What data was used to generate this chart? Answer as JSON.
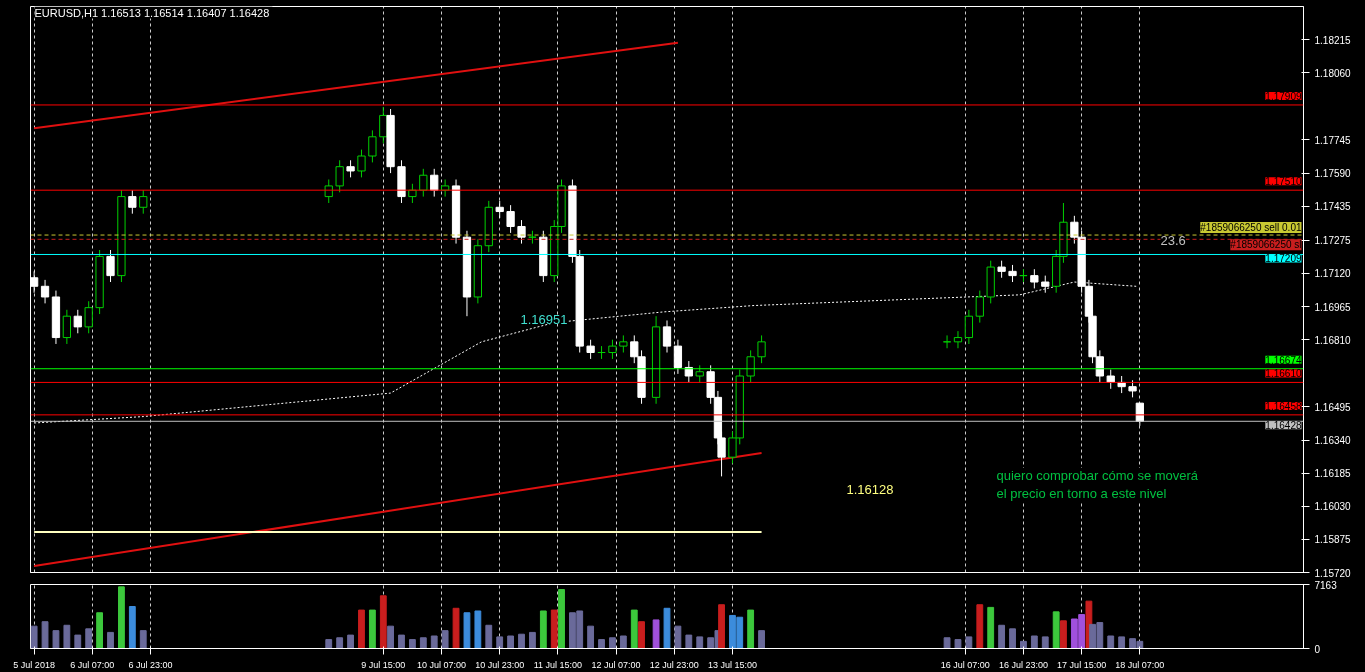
{
  "chart_data": [
    {
      "type": "candlestick",
      "title": "EURUSD,H1  1.16513 1.16514 1.16407 1.16428",
      "x": [
        "2018-07-05T15:00",
        "2018-07-05T18:00",
        "2018-07-05T21:00",
        "2018-07-06T00:00",
        "2018-07-06T03:00",
        "2018-07-06T06:00",
        "2018-07-06T09:00",
        "2018-07-06T12:00",
        "2018-07-06T15:00",
        "2018-07-06T18:00",
        "2018-07-06T21:00",
        "2018-07-09T00:00",
        "2018-07-09T03:00",
        "2018-07-09T06:00",
        "2018-07-09T09:00",
        "2018-07-09T12:00",
        "2018-07-09T15:00",
        "2018-07-09T17:00",
        "2018-07-09T20:00",
        "2018-07-09T23:00",
        "2018-07-10T02:00",
        "2018-07-10T05:00",
        "2018-07-10T08:00",
        "2018-07-10T11:00",
        "2018-07-10T14:00",
        "2018-07-10T17:00",
        "2018-07-10T20:00",
        "2018-07-10T23:00",
        "2018-07-11T02:00",
        "2018-07-11T05:00",
        "2018-07-11T08:00",
        "2018-07-11T11:00",
        "2018-07-11T14:00",
        "2018-07-11T16:00",
        "2018-07-11T19:00",
        "2018-07-11T21:00",
        "2018-07-12T00:00",
        "2018-07-12T03:00",
        "2018-07-12T06:00",
        "2018-07-12T09:00",
        "2018-07-12T12:00",
        "2018-07-12T14:00",
        "2018-07-12T18:00",
        "2018-07-12T21:00",
        "2018-07-13T00:00",
        "2018-07-13T03:00",
        "2018-07-13T06:00",
        "2018-07-13T09:00",
        "2018-07-13T11:00",
        "2018-07-13T12:00",
        "2018-07-13T15:00",
        "2018-07-13T17:00",
        "2018-07-13T20:00",
        "2018-07-13T23:00",
        "2018-07-16T02:00",
        "2018-07-16T05:00",
        "2018-07-16T08:00",
        "2018-07-16T11:00",
        "2018-07-16T14:00",
        "2018-07-16T17:00",
        "2018-07-16T20:00",
        "2018-07-16T23:00",
        "2018-07-17T02:00",
        "2018-07-17T05:00",
        "2018-07-17T08:00",
        "2018-07-17T10:00",
        "2018-07-17T13:00",
        "2018-07-17T15:00",
        "2018-07-17T17:00",
        "2018-07-17T18:00",
        "2018-07-17T20:00",
        "2018-07-17T23:00",
        "2018-07-18T02:00",
        "2018-07-18T05:00",
        "2018-07-18T07:00"
      ],
      "ohlc": [
        [
          1.171,
          1.1713,
          1.1703,
          1.1706
        ],
        [
          1.1706,
          1.1709,
          1.1698,
          1.1701
        ],
        [
          1.1701,
          1.1704,
          1.1679,
          1.1682
        ],
        [
          1.1682,
          1.1695,
          1.1679,
          1.1692
        ],
        [
          1.1692,
          1.1695,
          1.1684,
          1.1687
        ],
        [
          1.1687,
          1.1699,
          1.1684,
          1.1696
        ],
        [
          1.1696,
          1.1723,
          1.1693,
          1.172
        ],
        [
          1.172,
          1.1723,
          1.1708,
          1.1711
        ],
        [
          1.1711,
          1.1751,
          1.1708,
          1.1748
        ],
        [
          1.1748,
          1.1751,
          1.174,
          1.1743
        ],
        [
          1.1743,
          1.1751,
          1.174,
          1.1748
        ],
        [
          1.1748,
          1.1756,
          1.1745,
          1.1753
        ],
        [
          1.1753,
          1.1765,
          1.175,
          1.1762
        ],
        [
          1.1762,
          1.1765,
          1.1757,
          1.176
        ],
        [
          1.176,
          1.177,
          1.1757,
          1.1767
        ],
        [
          1.1767,
          1.1779,
          1.1764,
          1.1776
        ],
        [
          1.1776,
          1.179,
          1.1773,
          1.1786
        ],
        [
          1.1786,
          1.1789,
          1.1759,
          1.1762
        ],
        [
          1.1762,
          1.1765,
          1.1745,
          1.1748
        ],
        [
          1.1748,
          1.1754,
          1.1745,
          1.1751
        ],
        [
          1.1751,
          1.1761,
          1.1748,
          1.1758
        ],
        [
          1.1758,
          1.1761,
          1.1748,
          1.1751
        ],
        [
          1.1751,
          1.1756,
          1.1748,
          1.1753
        ],
        [
          1.1753,
          1.1756,
          1.1726,
          1.1729
        ],
        [
          1.1729,
          1.1732,
          1.1692,
          1.1701
        ],
        [
          1.1701,
          1.1728,
          1.1698,
          1.1725
        ],
        [
          1.1725,
          1.1746,
          1.1722,
          1.1743
        ],
        [
          1.1743,
          1.1746,
          1.1738,
          1.1741
        ],
        [
          1.1741,
          1.1744,
          1.1731,
          1.1734
        ],
        [
          1.1734,
          1.1737,
          1.1726,
          1.1729
        ],
        [
          1.1729,
          1.1732,
          1.1726,
          1.1729
        ],
        [
          1.1729,
          1.1732,
          1.1708,
          1.1711
        ],
        [
          1.1711,
          1.1737,
          1.1708,
          1.1734
        ],
        [
          1.1734,
          1.1756,
          1.1731,
          1.1753
        ],
        [
          1.1753,
          1.1756,
          1.1717,
          1.172
        ],
        [
          1.172,
          1.1723,
          1.1675,
          1.1678
        ],
        [
          1.1678,
          1.1681,
          1.1672,
          1.1675
        ],
        [
          1.1675,
          1.1678,
          1.1672,
          1.1675
        ],
        [
          1.1675,
          1.1681,
          1.1672,
          1.1678
        ],
        [
          1.1678,
          1.1683,
          1.1675,
          1.168
        ],
        [
          1.168,
          1.1683,
          1.167,
          1.1673
        ],
        [
          1.1673,
          1.1676,
          1.1651,
          1.1654
        ],
        [
          1.1654,
          1.1692,
          1.1651,
          1.1687
        ],
        [
          1.1687,
          1.169,
          1.1675,
          1.1678
        ],
        [
          1.1678,
          1.1681,
          1.1665,
          1.1668
        ],
        [
          1.1668,
          1.1671,
          1.1661,
          1.1664
        ],
        [
          1.1664,
          1.1669,
          1.1661,
          1.1666
        ],
        [
          1.1666,
          1.1669,
          1.1651,
          1.1654
        ],
        [
          1.1654,
          1.1657,
          1.1632,
          1.1635
        ],
        [
          1.1635,
          1.1638,
          1.1617,
          1.1626
        ],
        [
          1.1626,
          1.1638,
          1.1623,
          1.1635
        ],
        [
          1.1635,
          1.1667,
          1.1632,
          1.1664
        ],
        [
          1.1664,
          1.1676,
          1.1661,
          1.1673
        ],
        [
          1.1673,
          1.1683,
          1.167,
          1.168
        ],
        [
          1.168,
          1.1683,
          1.1677,
          1.168
        ],
        [
          1.168,
          1.1685,
          1.1677,
          1.1682
        ],
        [
          1.1682,
          1.1695,
          1.1679,
          1.1692
        ],
        [
          1.1692,
          1.1704,
          1.1689,
          1.1701
        ],
        [
          1.1701,
          1.1718,
          1.1698,
          1.1715
        ],
        [
          1.1715,
          1.1718,
          1.171,
          1.1713
        ],
        [
          1.1713,
          1.1716,
          1.1708,
          1.1711
        ],
        [
          1.1711,
          1.1714,
          1.1708,
          1.1711
        ],
        [
          1.1711,
          1.1714,
          1.1705,
          1.1708
        ],
        [
          1.1708,
          1.1711,
          1.1703,
          1.1706
        ],
        [
          1.1706,
          1.1723,
          1.1703,
          1.172
        ],
        [
          1.172,
          1.1745,
          1.1717,
          1.1736
        ],
        [
          1.1736,
          1.1739,
          1.1726,
          1.1729
        ],
        [
          1.1729,
          1.1732,
          1.1703,
          1.1706
        ],
        [
          1.1706,
          1.1709,
          1.1689,
          1.1692
        ],
        [
          1.1692,
          1.1695,
          1.167,
          1.1673
        ],
        [
          1.1673,
          1.1676,
          1.1661,
          1.1664
        ],
        [
          1.1664,
          1.1667,
          1.1658,
          1.1661
        ],
        [
          1.1661,
          1.1664,
          1.1656,
          1.1659
        ],
        [
          1.1659,
          1.1662,
          1.1654,
          1.1657
        ],
        [
          1.16513,
          1.16514,
          1.16407,
          1.16428
        ]
      ],
      "series": [
        {
          "type": "line",
          "color": "#e01010",
          "x": [
            "2018-07-05T15:00",
            "2018-07-13T00:00"
          ],
          "values": [
            1.178,
            1.182
          ]
        },
        {
          "type": "line",
          "color": "#e01010",
          "x": [
            "2018-07-05T15:00",
            "2018-07-13T23:00"
          ],
          "values": [
            1.1575,
            1.1628
          ]
        },
        {
          "type": "line",
          "color": "#ffffc0",
          "x": [
            "2018-07-05T15:00",
            "2018-07-13T23:00"
          ],
          "values": [
            1.1591,
            1.1591
          ]
        },
        {
          "type": "line",
          "color": "#ffffff",
          "line_style": "dotted",
          "x": [
            "2018-07-05T15:00",
            "2018-07-06T21:00",
            "2018-07-09T17:00",
            "2018-07-10T18:00",
            "2018-07-11T14:00",
            "2018-07-12T20:00",
            "2018-07-13T21:00",
            "2018-07-16T22:00",
            "2018-07-17T13:00",
            "2018-07-18T06:00"
          ],
          "values": [
            1.1642,
            1.1645,
            1.1656,
            1.168,
            1.1689,
            1.1694,
            1.1697,
            1.1702,
            1.1708,
            1.1706
          ]
        }
      ],
      "ref_lines": [
        {
          "axis": "y",
          "value": 1.17909,
          "label": "1.17909",
          "color": "#ff0000"
        },
        {
          "axis": "y",
          "value": 1.1751,
          "label": "1.17510",
          "color": "#ff0000"
        },
        {
          "axis": "y",
          "value": 1.173,
          "label": "#1859066250 sell 0.01",
          "color": "#c8c832",
          "line_style": "dashed"
        },
        {
          "axis": "y",
          "value": 1.1728,
          "label": "#1859066250 sl",
          "color": "#c81e1e",
          "line_style": "dashed"
        },
        {
          "axis": "y",
          "value": 1.17209,
          "label": "1.17209",
          "color": "#00ffff"
        },
        {
          "axis": "y",
          "value": 1.16674,
          "label": "1.16674",
          "color": "#00ff00"
        },
        {
          "axis": "y",
          "value": 1.1661,
          "label": "1.16610",
          "color": "#ff0000"
        },
        {
          "axis": "y",
          "value": 1.16458,
          "label": "1.16458",
          "color": "#ff0000"
        },
        {
          "axis": "y",
          "value": 1.16428,
          "label": "1.16428",
          "color": "#c0c0c0"
        }
      ],
      "annotations": [
        "23.6",
        "1.16951",
        "1.16128",
        "quiero comprobar cómo se moverá\nel precio en torno a este nivel"
      ],
      "xlim": [
        "2018-07-05T14:00",
        "2018-07-20T04:00"
      ],
      "xticks": [
        {
          "value": "2018-07-05T15:00",
          "label": null
        },
        {
          "value": "2018-07-06T07:00",
          "label": null
        },
        {
          "value": "2018-07-06T23:00",
          "label": null
        },
        {
          "value": "2018-07-09T15:00",
          "label": null
        },
        {
          "value": "2018-07-10T07:00",
          "label": null
        },
        {
          "value": "2018-07-10T23:00",
          "label": null
        },
        {
          "value": "2018-07-11T15:00",
          "label": null
        },
        {
          "value": "2018-07-12T07:00",
          "label": null
        },
        {
          "value": "2018-07-12T23:00",
          "label": null
        },
        {
          "value": "2018-07-13T15:00",
          "label": null
        },
        {
          "value": "2018-07-16T07:00",
          "label": null
        },
        {
          "value": "2018-07-16T23:00",
          "label": null
        },
        {
          "value": "2018-07-17T15:00",
          "label": null
        },
        {
          "value": "2018-07-18T07:00",
          "label": null
        }
      ],
      "ylim": [
        1.1572,
        1.1837
      ],
      "yticks": [
        {
          "value": 1.18215,
          "label": "1.18215"
        },
        {
          "value": 1.1806,
          "label": "1.18060"
        },
        {
          "value": 1.17745,
          "label": "1.17745"
        },
        {
          "value": 1.1759,
          "label": "1.17590"
        },
        {
          "value": 1.17435,
          "label": "1.17435"
        },
        {
          "value": 1.17275,
          "label": "1.17275"
        },
        {
          "value": 1.1712,
          "label": "1.17120"
        },
        {
          "value": 1.16965,
          "label": "1.16965"
        },
        {
          "value": 1.1681,
          "label": "1.16810"
        },
        {
          "value": 1.16495,
          "label": "1.16495"
        },
        {
          "value": 1.1634,
          "label": "1.16340"
        },
        {
          "value": 1.16185,
          "label": "1.16185"
        },
        {
          "value": 1.1603,
          "label": "1.16030"
        },
        {
          "value": 1.15875,
          "label": "1.15875"
        },
        {
          "value": 1.1572,
          "label": "1.15720"
        }
      ],
      "grid": "x",
      "tick_labels": "y"
    },
    {
      "type": "bar",
      "x": [
        "2018-07-05T15:00",
        "2018-07-05T18:00",
        "2018-07-05T21:00",
        "2018-07-06T00:00",
        "2018-07-06T03:00",
        "2018-07-06T06:00",
        "2018-07-06T09:00",
        "2018-07-06T12:00",
        "2018-07-06T15:00",
        "2018-07-06T18:00",
        "2018-07-06T21:00",
        "2018-07-09T00:00",
        "2018-07-09T03:00",
        "2018-07-09T06:00",
        "2018-07-09T09:00",
        "2018-07-09T12:00",
        "2018-07-09T15:00",
        "2018-07-09T17:00",
        "2018-07-09T20:00",
        "2018-07-09T23:00",
        "2018-07-10T02:00",
        "2018-07-10T05:00",
        "2018-07-10T08:00",
        "2018-07-10T11:00",
        "2018-07-10T14:00",
        "2018-07-10T17:00",
        "2018-07-10T20:00",
        "2018-07-10T23:00",
        "2018-07-11T02:00",
        "2018-07-11T05:00",
        "2018-07-11T08:00",
        "2018-07-11T11:00",
        "2018-07-11T14:00",
        "2018-07-11T16:00",
        "2018-07-11T19:00",
        "2018-07-11T21:00",
        "2018-07-12T00:00",
        "2018-07-12T03:00",
        "2018-07-12T06:00",
        "2018-07-12T09:00",
        "2018-07-12T12:00",
        "2018-07-12T14:00",
        "2018-07-12T18:00",
        "2018-07-12T21:00",
        "2018-07-13T00:00",
        "2018-07-13T03:00",
        "2018-07-13T06:00",
        "2018-07-13T09:00",
        "2018-07-13T11:00",
        "2018-07-13T12:00",
        "2018-07-13T15:00",
        "2018-07-13T17:00",
        "2018-07-13T20:00",
        "2018-07-13T23:00",
        "2018-07-16T02:00",
        "2018-07-16T05:00",
        "2018-07-16T08:00",
        "2018-07-16T11:00",
        "2018-07-16T14:00",
        "2018-07-16T17:00",
        "2018-07-16T20:00",
        "2018-07-16T23:00",
        "2018-07-17T02:00",
        "2018-07-17T05:00",
        "2018-07-17T08:00",
        "2018-07-17T10:00",
        "2018-07-17T13:00",
        "2018-07-17T15:00",
        "2018-07-17T17:00",
        "2018-07-17T18:00",
        "2018-07-17T20:00",
        "2018-07-17T23:00",
        "2018-07-18T02:00",
        "2018-07-18T05:00",
        "2018-07-18T07:00"
      ],
      "values": [
        2500,
        3000,
        2000,
        2600,
        1500,
        2200,
        4000,
        1800,
        6900,
        4700,
        2000,
        1000,
        1200,
        1500,
        4300,
        4300,
        5900,
        2500,
        1500,
        1000,
        1200,
        1400,
        2000,
        4500,
        4000,
        4200,
        2600,
        1300,
        1400,
        1600,
        1800,
        4200,
        4300,
        6600,
        4000,
        4200,
        2500,
        1000,
        1200,
        1400,
        4300,
        3000,
        3200,
        4500,
        2500,
        1500,
        1300,
        1200,
        2000,
        4900,
        3700,
        3500,
        4300,
        2000,
        1200,
        1000,
        1300,
        4900,
        4600,
        2600,
        2200,
        800,
        1400,
        1300,
        4100,
        3100,
        3300,
        3800,
        5300,
        2700,
        2900,
        1400,
        1300,
        1100,
        800
      ],
      "colors": [
        "#6a6a9a",
        "#6a6a9a",
        "#6a6a9a",
        "#6a6a9a",
        "#6a6a9a",
        "#6a6a9a",
        "#3cc83c",
        "#6a6a9a",
        "#3cc83c",
        "#3c8cdc",
        "#6a6a9a",
        "#6a6a9a",
        "#6a6a9a",
        "#6a6a9a",
        "#c81e1e",
        "#3cc83c",
        "#c81e1e",
        "#6a6a9a",
        "#6a6a9a",
        "#6a6a9a",
        "#6a6a9a",
        "#6a6a9a",
        "#6a6a9a",
        "#c81e1e",
        "#3c8cdc",
        "#3c8cdc",
        "#6a6a9a",
        "#6a6a9a",
        "#6a6a9a",
        "#6a6a9a",
        "#6a6a9a",
        "#3cc83c",
        "#c81e1e",
        "#3cc83c",
        "#6a6a9a",
        "#6a6a9a",
        "#6a6a9a",
        "#6a6a9a",
        "#6a6a9a",
        "#6a6a9a",
        "#3cc83c",
        "#c81e1e",
        "#a050dc",
        "#3c8cdc",
        "#6a6a9a",
        "#6a6a9a",
        "#6a6a9a",
        "#6a6a9a",
        "#6a6a9a",
        "#c81e1e",
        "#3c8cdc",
        "#3c8cdc",
        "#3cc83c",
        "#6a6a9a",
        "#6a6a9a",
        "#6a6a9a",
        "#6a6a9a",
        "#c81e1e",
        "#3cc83c",
        "#6a6a9a",
        "#6a6a9a",
        "#6a6a9a",
        "#6a6a9a",
        "#6a6a9a",
        "#3cc83c",
        "#c81e1e",
        "#a050dc",
        "#a050dc",
        "#c81e1e",
        "#6a6a9a",
        "#6a6a9a",
        "#6a6a9a",
        "#6a6a9a",
        "#6a6a9a",
        "#6a6a9a"
      ],
      "xlim": [
        "2018-07-05T14:00",
        "2018-07-20T04:00"
      ],
      "xticks": [
        {
          "value": "2018-07-05T15:00",
          "label": "5 Jul 2018"
        },
        {
          "value": "2018-07-06T07:00",
          "label": "6 Jul 07:00"
        },
        {
          "value": "2018-07-06T23:00",
          "label": "6 Jul 23:00"
        },
        {
          "value": "2018-07-09T15:00",
          "label": "9 Jul 15:00"
        },
        {
          "value": "2018-07-10T07:00",
          "label": "10 Jul 07:00"
        },
        {
          "value": "2018-07-10T23:00",
          "label": "10 Jul 23:00"
        },
        {
          "value": "2018-07-11T15:00",
          "label": "11 Jul 15:00"
        },
        {
          "value": "2018-07-12T07:00",
          "label": "12 Jul 07:00"
        },
        {
          "value": "2018-07-12T23:00",
          "label": "12 Jul 23:00"
        },
        {
          "value": "2018-07-13T15:00",
          "label": "13 Jul 15:00"
        },
        {
          "value": "2018-07-16T07:00",
          "label": "16 Jul 07:00"
        },
        {
          "value": "2018-07-16T23:00",
          "label": "16 Jul 23:00"
        },
        {
          "value": "2018-07-17T15:00",
          "label": "17 Jul 15:00"
        },
        {
          "value": "2018-07-18T07:00",
          "label": "18 Jul 07:00"
        }
      ],
      "ylim": [
        0,
        7163
      ],
      "yticks": [
        0,
        7163
      ],
      "grid": "x"
    }
  ]
}
